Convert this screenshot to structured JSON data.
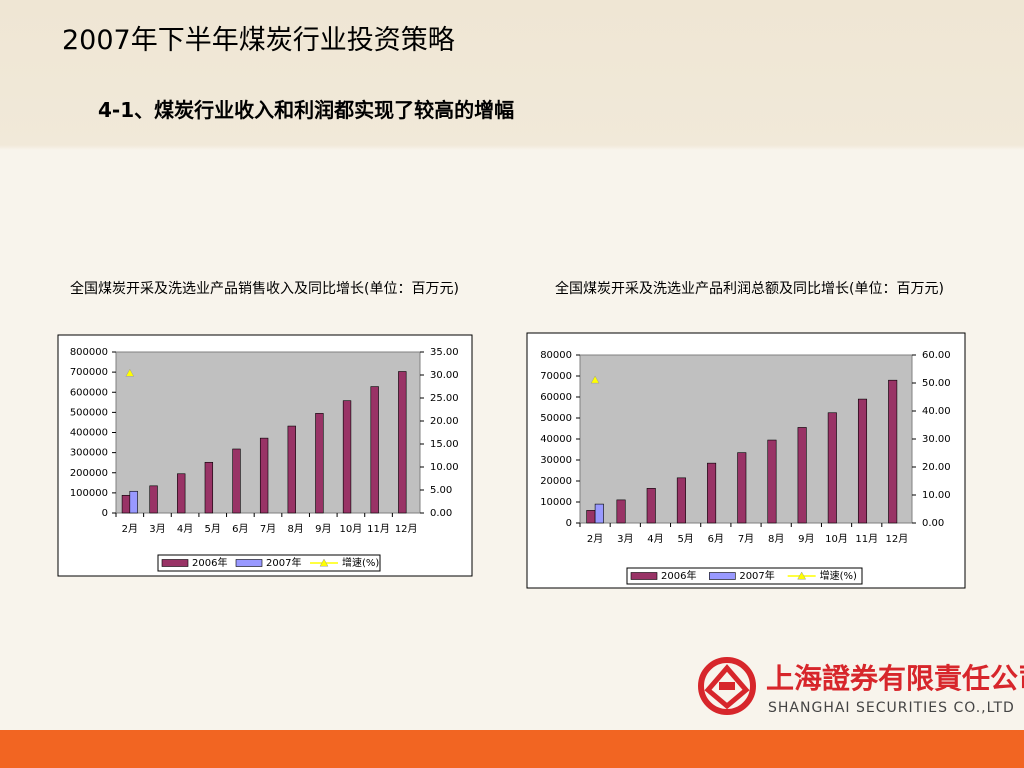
{
  "header": {
    "title": "2007年下半年煤炭行业投资策略",
    "subtitle": "4-1、煤炭行业收入和利润都实现了较高的增幅"
  },
  "company": {
    "name_cn": "上海證券有限責任公司",
    "name_en": "SHANGHAI SECURITIES CO.,LTD"
  },
  "chart_data": [
    {
      "type": "bar",
      "title": "全国煤炭开采及洗选业产品销售收入及同比增长(单位：百万元)",
      "categories": [
        "2月",
        "3月",
        "4月",
        "5月",
        "6月",
        "7月",
        "8月",
        "9月",
        "10月",
        "11月",
        "12月"
      ],
      "series": [
        {
          "name": "2006年",
          "color": "#993366",
          "values": [
            88000,
            135000,
            195000,
            252000,
            318000,
            372000,
            432000,
            495000,
            558000,
            628000,
            703000
          ]
        },
        {
          "name": "2007年",
          "color": "#9999ff",
          "values": [
            108000,
            null,
            null,
            null,
            null,
            null,
            null,
            null,
            null,
            null,
            null
          ]
        },
        {
          "name": "增速(%)",
          "color": "#ffff00",
          "type": "line",
          "axis": "y2",
          "values": [
            30.4,
            null,
            null,
            null,
            null,
            null,
            null,
            null,
            null,
            null,
            null
          ]
        }
      ],
      "ylim": [
        0,
        800000
      ],
      "yticks": [
        0,
        100000,
        200000,
        300000,
        400000,
        500000,
        600000,
        700000,
        800000
      ],
      "y2lim": [
        0,
        35
      ],
      "y2ticks": [
        {
          "value": 0,
          "label": "0.00"
        },
        {
          "value": 5,
          "label": "5.00"
        },
        {
          "value": 10,
          "label": "10.00"
        },
        {
          "value": 15,
          "label": "15.00"
        },
        {
          "value": 20,
          "label": "20.00"
        },
        {
          "value": 25,
          "label": "25.00"
        },
        {
          "value": 30,
          "label": "30.00"
        },
        {
          "value": 35,
          "label": "35.00"
        }
      ],
      "grid": false,
      "legend": "bottom"
    },
    {
      "type": "bar",
      "title": "全国煤炭开采及洗选业产品利润总额及同比增长(单位：百万元)",
      "categories": [
        "2月",
        "3月",
        "4月",
        "5月",
        "6月",
        "7月",
        "8月",
        "9月",
        "10月",
        "11月",
        "12月"
      ],
      "series": [
        {
          "name": "2006年",
          "color": "#993366",
          "values": [
            6000,
            11000,
            16500,
            21500,
            28500,
            33500,
            39500,
            45500,
            52500,
            59000,
            68000
          ]
        },
        {
          "name": "2007年",
          "color": "#9999ff",
          "values": [
            9000,
            null,
            null,
            null,
            null,
            null,
            null,
            null,
            null,
            null,
            null
          ]
        },
        {
          "name": "增速(%)",
          "color": "#ffff00",
          "type": "line",
          "axis": "y2",
          "values": [
            51.1,
            null,
            null,
            null,
            null,
            null,
            null,
            null,
            null,
            null,
            null
          ]
        }
      ],
      "ylim": [
        0,
        80000
      ],
      "yticks": [
        0,
        10000,
        20000,
        30000,
        40000,
        50000,
        60000,
        70000,
        80000
      ],
      "y2lim": [
        0,
        60
      ],
      "y2ticks": [
        {
          "value": 0,
          "label": "0.00"
        },
        {
          "value": 10,
          "label": "10.00"
        },
        {
          "value": 20,
          "label": "20.00"
        },
        {
          "value": 30,
          "label": "30.00"
        },
        {
          "value": 40,
          "label": "40.00"
        },
        {
          "value": 50,
          "label": "50.00"
        },
        {
          "value": 60,
          "label": "60.00"
        }
      ],
      "grid": false,
      "legend": "bottom"
    }
  ]
}
